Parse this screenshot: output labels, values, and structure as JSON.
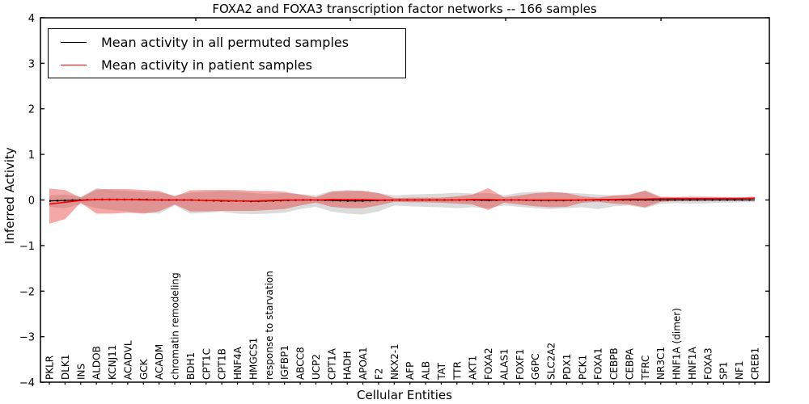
{
  "chart_data": {
    "type": "line",
    "title": "FOXA2 and FOXA3 transcription factor networks -- 166 samples",
    "xlabel": "Cellular Entities",
    "ylabel": "Inferred Activity",
    "ylim": [
      -4,
      4
    ],
    "ytick_values": [
      4,
      3,
      2,
      1,
      0,
      -1,
      -2,
      -3,
      -4
    ],
    "top_tick_x": [
      242,
      433,
      625,
      817
    ],
    "grid": false,
    "legend_position": "upper left",
    "categories": [
      "PKLR",
      "DLK1",
      "INS",
      "ALDOB",
      "KCNJ11",
      "ACADVL",
      "GCK",
      "ACADM",
      "chromatin remodeling",
      "BDH1",
      "CPT1C",
      "CPT1B",
      "HNF4A",
      "HMGCS1",
      "response to starvation",
      "IGFBP1",
      "ABCC8",
      "UCP2",
      "CPT1A",
      "HADH",
      "APOA1",
      "F2",
      "NKX2-1",
      "AFP",
      "ALB",
      "TAT",
      "TTR",
      "AKT1",
      "FOXA2",
      "ALAS1",
      "FOXF1",
      "G6PC",
      "SLC2A2",
      "PDX1",
      "PCK1",
      "FOXA1",
      "CEBPB",
      "CEBPA",
      "TFRC",
      "NR3C1",
      "HNF1A (dimer)",
      "HNF1A",
      "FOXA3",
      "SP1",
      "NF1",
      "CREB1"
    ],
    "series": [
      {
        "name": "Mean activity in all permuted samples",
        "color": "#000000",
        "line_style": "solid with dotted marker overlay",
        "values": [
          -0.02,
          -0.01,
          0,
          0.01,
          0.01,
          0.01,
          0.01,
          0,
          0,
          0,
          -0.01,
          -0.02,
          -0.02,
          -0.03,
          -0.02,
          -0.01,
          0,
          0,
          -0.01,
          -0.02,
          -0.02,
          -0.01,
          0,
          0,
          0,
          0,
          0,
          0,
          -0.01,
          0,
          0,
          -0.01,
          -0.01,
          -0.01,
          0,
          0,
          0,
          0,
          0,
          0,
          0,
          0,
          0,
          0,
          0,
          0
        ],
        "band": {
          "label": "permuted-samples-spread",
          "fill": "#aaaaaa",
          "opacity": 0.42,
          "upper": [
            0.1,
            0.12,
            0.07,
            0.26,
            0.22,
            0.2,
            0.18,
            0.16,
            0.1,
            0.16,
            0.18,
            0.2,
            0.18,
            0.15,
            0.13,
            0.15,
            0.13,
            0.1,
            0.2,
            0.22,
            0.2,
            0.15,
            0.1,
            0.12,
            0.13,
            0.14,
            0.16,
            0.14,
            0.15,
            0.1,
            0.16,
            0.18,
            0.18,
            0.16,
            0.14,
            0.12,
            0.1,
            0.1,
            0.22,
            0.08,
            0.07,
            0.09,
            0.08,
            0.07,
            0.06,
            0.06
          ],
          "lower": [
            -0.15,
            -0.18,
            -0.09,
            -0.18,
            -0.22,
            -0.25,
            -0.28,
            -0.3,
            -0.12,
            -0.3,
            -0.28,
            -0.26,
            -0.3,
            -0.31,
            -0.3,
            -0.28,
            -0.2,
            -0.15,
            -0.25,
            -0.3,
            -0.32,
            -0.25,
            -0.12,
            -0.14,
            -0.15,
            -0.16,
            -0.18,
            -0.16,
            -0.18,
            -0.12,
            -0.15,
            -0.18,
            -0.2,
            -0.18,
            -0.16,
            -0.2,
            -0.14,
            -0.12,
            -0.18,
            -0.08,
            -0.07,
            -0.08,
            -0.07,
            -0.06,
            -0.05,
            -0.05
          ]
        }
      },
      {
        "name": "Mean activity in patient samples",
        "color": "#ff0000",
        "line_style": "solid",
        "values": [
          -0.09,
          -0.05,
          -0.01,
          0.01,
          0.01,
          0.01,
          0,
          0,
          0,
          0,
          -0.01,
          -0.01,
          -0.02,
          -0.02,
          -0.01,
          0,
          0,
          0,
          0.01,
          0.01,
          0.01,
          0,
          0,
          0,
          0,
          0,
          0,
          0.01,
          0.01,
          0,
          0,
          0,
          0,
          0,
          0,
          0.01,
          0.01,
          0.02,
          0.02,
          0.03,
          0.03,
          0.03,
          0.03,
          0.03,
          0.03,
          0.04
        ],
        "band": {
          "label": "patient-samples-spread",
          "fill": "#e83030",
          "opacity": 0.42,
          "upper": [
            0.25,
            0.22,
            0.05,
            0.23,
            0.24,
            0.24,
            0.22,
            0.2,
            0.08,
            0.21,
            0.22,
            0.22,
            0.22,
            0.2,
            0.2,
            0.18,
            0.12,
            0.06,
            0.18,
            0.2,
            0.2,
            0.15,
            0.04,
            0.05,
            0.05,
            0.05,
            0.08,
            0.12,
            0.26,
            0.06,
            0.1,
            0.15,
            0.17,
            0.15,
            0.08,
            0.05,
            0.1,
            0.12,
            0.2,
            0.06,
            0.06,
            0.06,
            0.06,
            0.06,
            0.06,
            0.07
          ],
          "lower": [
            -0.52,
            -0.42,
            -0.06,
            -0.3,
            -0.3,
            -0.28,
            -0.3,
            -0.25,
            -0.1,
            -0.25,
            -0.25,
            -0.24,
            -0.24,
            -0.24,
            -0.22,
            -0.2,
            -0.12,
            -0.06,
            -0.15,
            -0.18,
            -0.18,
            -0.12,
            -0.04,
            -0.05,
            -0.05,
            -0.06,
            -0.08,
            -0.1,
            -0.22,
            -0.06,
            -0.1,
            -0.14,
            -0.16,
            -0.15,
            -0.06,
            -0.04,
            -0.08,
            -0.1,
            -0.16,
            -0.04,
            -0.02,
            -0.02,
            -0.01,
            -0.01,
            -0.01,
            0.0
          ]
        }
      }
    ]
  }
}
